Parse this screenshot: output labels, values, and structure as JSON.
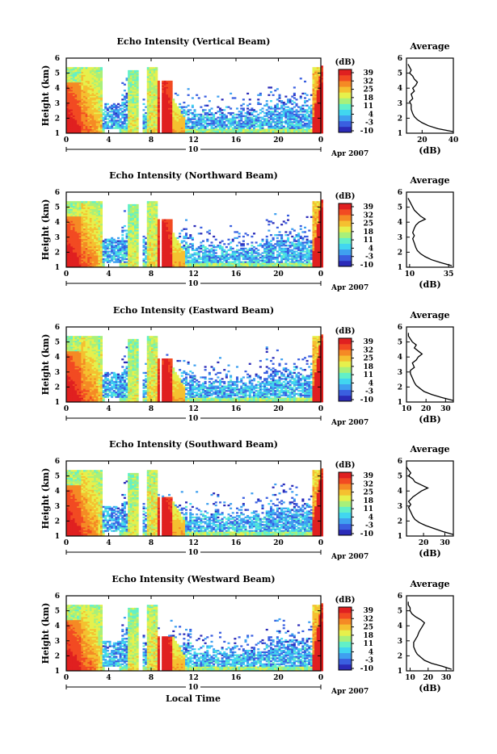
{
  "common": {
    "ylabel": "Height (km)",
    "xlabel": "Local Time",
    "date_label": "Apr 2007",
    "day_label": "10",
    "colorbar_unit": "(dB)",
    "avg_title": "Average",
    "avg_xlabel": "(dB)",
    "x_tick_labels": [
      "0",
      "4",
      "8",
      "12",
      "16",
      "20",
      "0"
    ],
    "y_tick_labels": [
      "1",
      "2",
      "3",
      "4",
      "5",
      "6"
    ],
    "colorbar_ticks": [
      "39",
      "32",
      "25",
      "18",
      "11",
      "4",
      "-3",
      "-10"
    ],
    "colormap": [
      "#2b2bb8",
      "#3a5fe0",
      "#3fa0f0",
      "#41d6f0",
      "#62f0c8",
      "#a8f07a",
      "#e6f04c",
      "#f5c030",
      "#f58a25",
      "#f24a22",
      "#e02020"
    ]
  },
  "chart_data": [
    {
      "type": "heatmap",
      "title": "Echo Intensity (Vertical Beam)",
      "xlabel": "",
      "ylabel": "Height (km)",
      "xlim": [
        0,
        24
      ],
      "ylim": [
        1,
        6
      ],
      "clim": [
        -10,
        39
      ],
      "x_ticks": [
        0,
        4,
        8,
        12,
        16,
        20,
        24
      ],
      "avg_profile": {
        "xlim": [
          10,
          40
        ],
        "x_ticks": [
          20,
          40
        ],
        "x_tick_labels": [
          "20",
          "40"
        ],
        "points": [
          [
            40,
            1.1
          ],
          [
            30,
            1.3
          ],
          [
            24,
            1.5
          ],
          [
            20,
            1.7
          ],
          [
            17,
            1.9
          ],
          [
            15,
            2.1
          ],
          [
            14,
            2.3
          ],
          [
            13,
            2.6
          ],
          [
            13,
            2.9
          ],
          [
            12,
            3.1
          ],
          [
            14,
            3.3
          ],
          [
            13,
            3.6
          ],
          [
            15,
            3.8
          ],
          [
            14,
            4.0
          ],
          [
            16,
            4.2
          ],
          [
            17,
            4.4
          ],
          [
            15,
            4.6
          ],
          [
            14,
            4.8
          ],
          [
            12,
            5.0
          ],
          [
            13,
            5.2
          ],
          [
            12,
            5.4
          ],
          [
            11,
            5.6
          ]
        ]
      }
    },
    {
      "type": "heatmap",
      "title": "Echo Intensity (Northward Beam)",
      "xlabel": "",
      "ylabel": "Height (km)",
      "xlim": [
        0,
        24
      ],
      "ylim": [
        1,
        6
      ],
      "clim": [
        -10,
        39
      ],
      "x_ticks": [
        0,
        4,
        8,
        12,
        16,
        20,
        24
      ],
      "avg_profile": {
        "xlim": [
          8,
          38
        ],
        "x_ticks": [
          10,
          35
        ],
        "x_tick_labels": [
          "10",
          "35"
        ],
        "points": [
          [
            37,
            1.1
          ],
          [
            30,
            1.3
          ],
          [
            24,
            1.5
          ],
          [
            20,
            1.7
          ],
          [
            17,
            1.9
          ],
          [
            15,
            2.1
          ],
          [
            14,
            2.3
          ],
          [
            13,
            2.6
          ],
          [
            12,
            2.9
          ],
          [
            13,
            3.1
          ],
          [
            12,
            3.3
          ],
          [
            13,
            3.6
          ],
          [
            14,
            3.8
          ],
          [
            16,
            4.0
          ],
          [
            20,
            4.2
          ],
          [
            17,
            4.4
          ],
          [
            15,
            4.6
          ],
          [
            13,
            4.8
          ],
          [
            12,
            5.0
          ],
          [
            11,
            5.2
          ],
          [
            10,
            5.4
          ],
          [
            9,
            5.6
          ]
        ]
      }
    },
    {
      "type": "heatmap",
      "title": "Echo Intensity (Eastward Beam)",
      "xlabel": "",
      "ylabel": "Height (km)",
      "xlim": [
        0,
        24
      ],
      "ylim": [
        1,
        6
      ],
      "clim": [
        -10,
        39
      ],
      "x_ticks": [
        0,
        4,
        8,
        12,
        16,
        20,
        24
      ],
      "avg_profile": {
        "xlim": [
          10,
          34
        ],
        "x_ticks": [
          10,
          20,
          30
        ],
        "x_tick_labels": [
          "10",
          "20",
          "30"
        ],
        "points": [
          [
            34,
            1.1
          ],
          [
            28,
            1.3
          ],
          [
            23,
            1.5
          ],
          [
            19,
            1.7
          ],
          [
            17,
            1.9
          ],
          [
            15,
            2.1
          ],
          [
            14,
            2.3
          ],
          [
            13,
            2.6
          ],
          [
            12,
            2.9
          ],
          [
            12,
            3.1
          ],
          [
            14,
            3.3
          ],
          [
            13,
            3.6
          ],
          [
            15,
            3.8
          ],
          [
            16,
            4.0
          ],
          [
            18,
            4.2
          ],
          [
            16,
            4.4
          ],
          [
            14,
            4.6
          ],
          [
            15,
            4.8
          ],
          [
            13,
            5.0
          ],
          [
            12,
            5.2
          ],
          [
            11,
            5.4
          ],
          [
            11,
            5.6
          ]
        ]
      }
    },
    {
      "type": "heatmap",
      "title": "Echo Intensity (Southward Beam)",
      "xlabel": "",
      "ylabel": "Height (km)",
      "xlim": [
        0,
        24
      ],
      "ylim": [
        1,
        6
      ],
      "clim": [
        -10,
        39
      ],
      "x_ticks": [
        0,
        4,
        8,
        12,
        16,
        20,
        24
      ],
      "avg_profile": {
        "xlim": [
          12,
          34
        ],
        "x_ticks": [
          20,
          30
        ],
        "x_tick_labels": [
          "20",
          "30"
        ],
        "points": [
          [
            34,
            1.1
          ],
          [
            29,
            1.3
          ],
          [
            25,
            1.5
          ],
          [
            21,
            1.7
          ],
          [
            18,
            1.9
          ],
          [
            16,
            2.1
          ],
          [
            15,
            2.3
          ],
          [
            14,
            2.6
          ],
          [
            13,
            2.9
          ],
          [
            14,
            3.1
          ],
          [
            13,
            3.3
          ],
          [
            15,
            3.6
          ],
          [
            17,
            3.8
          ],
          [
            19,
            4.0
          ],
          [
            22,
            4.2
          ],
          [
            19,
            4.4
          ],
          [
            16,
            4.6
          ],
          [
            15,
            4.8
          ],
          [
            13,
            5.0
          ],
          [
            14,
            5.2
          ],
          [
            13,
            5.4
          ],
          [
            12,
            5.6
          ]
        ]
      }
    },
    {
      "type": "heatmap",
      "title": "Echo Intensity (Westward Beam)",
      "xlabel": "Local Time",
      "ylabel": "Height (km)",
      "xlim": [
        0,
        24
      ],
      "ylim": [
        1,
        6
      ],
      "clim": [
        -10,
        39
      ],
      "x_ticks": [
        0,
        4,
        8,
        12,
        16,
        20,
        24
      ],
      "avg_profile": {
        "xlim": [
          8,
          34
        ],
        "x_ticks": [
          10,
          20,
          30
        ],
        "x_tick_labels": [
          "10",
          "20",
          "30"
        ],
        "points": [
          [
            33,
            1.1
          ],
          [
            28,
            1.3
          ],
          [
            22,
            1.5
          ],
          [
            18,
            1.7
          ],
          [
            16,
            1.9
          ],
          [
            14,
            2.1
          ],
          [
            13,
            2.3
          ],
          [
            12,
            2.6
          ],
          [
            12,
            2.9
          ],
          [
            13,
            3.1
          ],
          [
            14,
            3.3
          ],
          [
            15,
            3.6
          ],
          [
            16,
            3.8
          ],
          [
            17,
            4.0
          ],
          [
            18,
            4.2
          ],
          [
            16,
            4.4
          ],
          [
            13,
            4.6
          ],
          [
            11,
            4.8
          ],
          [
            10,
            5.0
          ],
          [
            10,
            5.2
          ],
          [
            9,
            5.4
          ],
          [
            9,
            5.6
          ]
        ]
      }
    }
  ]
}
